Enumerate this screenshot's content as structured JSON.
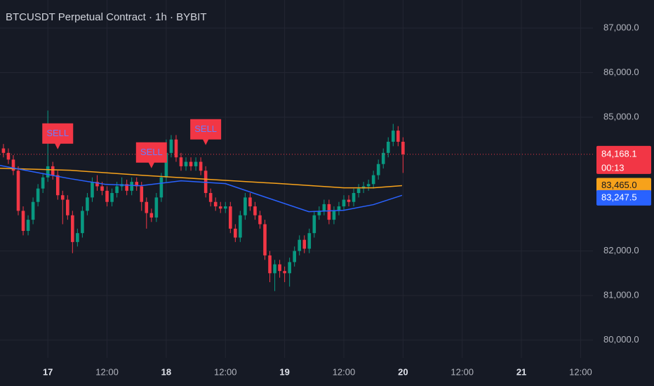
{
  "chart_data": {
    "type": "candlestick",
    "title": "BTCUSDT Perpetual Contract · 1h · BYBIT",
    "x": [
      -9,
      -8,
      -7,
      -6,
      -5,
      -4,
      -3,
      -2,
      -1,
      0,
      1,
      2,
      3,
      4,
      5,
      6,
      7,
      8,
      9,
      10,
      11,
      12,
      13,
      14,
      15,
      16,
      17,
      18,
      19,
      20,
      21,
      22,
      23,
      24,
      25,
      26,
      27,
      28,
      29,
      30,
      31,
      32,
      33,
      34,
      35,
      36,
      37,
      38,
      39,
      40,
      41,
      42,
      43,
      44,
      45,
      46,
      47,
      48,
      49,
      50,
      51,
      52,
      53,
      54,
      55,
      56,
      57,
      58,
      59,
      60,
      61,
      62,
      63,
      64,
      65,
      66,
      67,
      68,
      69,
      70,
      71,
      72
    ],
    "open": [
      84300,
      84200,
      84050,
      83800,
      82900,
      82450,
      82700,
      83100,
      83400,
      83650,
      83900,
      83700,
      83250,
      83150,
      82800,
      82200,
      82400,
      82900,
      83200,
      83550,
      83450,
      83350,
      83100,
      83300,
      83450,
      83500,
      83350,
      83550,
      83450,
      83100,
      82850,
      82750,
      83200,
      83650,
      84200,
      84500,
      84100,
      83900,
      84000,
      83900,
      84000,
      83800,
      83300,
      83100,
      83000,
      82950,
      83000,
      82500,
      82300,
      82800,
      83200,
      83000,
      82800,
      82600,
      81900,
      81500,
      81700,
      81550,
      81500,
      81750,
      82000,
      82250,
      82050,
      82400,
      82800,
      82900,
      83050,
      82700,
      82900,
      83000,
      83150,
      83100,
      83300,
      83400,
      83450,
      83500,
      83700,
      83950,
      84200,
      84450,
      84700,
      84450
    ],
    "high": [
      84400,
      84300,
      84150,
      83900,
      83000,
      82800,
      83200,
      83500,
      83750,
      85150,
      84000,
      83800,
      83350,
      83250,
      82900,
      82500,
      83000,
      83300,
      83650,
      83700,
      83550,
      83450,
      83400,
      83550,
      83650,
      83600,
      83650,
      83650,
      83550,
      83200,
      82950,
      83300,
      83750,
      84500,
      84600,
      84600,
      84200,
      84100,
      84100,
      84100,
      84100,
      83900,
      83400,
      83200,
      83100,
      83100,
      83100,
      82600,
      82900,
      83300,
      83300,
      83100,
      82900,
      82700,
      82000,
      81800,
      81800,
      81650,
      81850,
      82100,
      82350,
      82350,
      82500,
      82900,
      83000,
      83150,
      83150,
      83000,
      83100,
      83250,
      83250,
      83400,
      83500,
      83550,
      83600,
      83800,
      84050,
      84300,
      84550,
      84850,
      84800,
      84550
    ],
    "low": [
      84100,
      83950,
      83700,
      82800,
      82350,
      82350,
      82600,
      83000,
      83300,
      83550,
      83600,
      83150,
      82600,
      82700,
      81950,
      82100,
      82300,
      82800,
      83100,
      83350,
      83250,
      83000,
      83000,
      83200,
      83350,
      83250,
      83250,
      83350,
      82900,
      82500,
      82650,
      82650,
      83100,
      83550,
      84100,
      84000,
      83800,
      83800,
      83800,
      83800,
      83700,
      83200,
      83000,
      82900,
      82850,
      82850,
      82400,
      82200,
      82200,
      82700,
      82900,
      82700,
      82500,
      81800,
      81300,
      81100,
      81400,
      81300,
      81200,
      81650,
      81900,
      81950,
      81950,
      82300,
      82700,
      82800,
      82600,
      82600,
      82800,
      82900,
      83000,
      83000,
      83200,
      83300,
      83350,
      83400,
      83600,
      83850,
      84100,
      84350,
      84350,
      83750
    ],
    "close": [
      84200,
      84050,
      83800,
      82900,
      82450,
      82700,
      83100,
      83400,
      83650,
      83900,
      83700,
      83250,
      83150,
      82800,
      82200,
      82400,
      82900,
      83200,
      83550,
      83450,
      83350,
      83100,
      83300,
      83450,
      83500,
      83350,
      83550,
      83450,
      83100,
      82850,
      82750,
      83200,
      83650,
      84200,
      84500,
      84100,
      83900,
      84000,
      83900,
      84000,
      83800,
      83300,
      83100,
      83000,
      82950,
      83000,
      82500,
      82300,
      82800,
      83200,
      83000,
      82800,
      82600,
      81900,
      81500,
      81700,
      81550,
      81500,
      81750,
      82000,
      82250,
      82050,
      82400,
      82800,
      82900,
      83050,
      82700,
      82900,
      83000,
      83150,
      83100,
      83300,
      83400,
      83450,
      83500,
      83700,
      83950,
      84200,
      84450,
      84700,
      84450,
      84168.1
    ],
    "up_color": "#089981",
    "down_color": "#f23645",
    "lines": [
      {
        "color": "#f7a21b",
        "x": [
          -9.7,
          4.6,
          18.8,
          33,
          47.2,
          60,
          66,
          71.8
        ],
        "values": [
          83856,
          83809,
          83699,
          83604,
          83510,
          83416,
          83416,
          83465
        ],
        "last_label": "83,465.0"
      },
      {
        "color": "#2962ff",
        "x": [
          -9.7,
          -3,
          4.6,
          11.7,
          18.8,
          27,
          36,
          44.4,
          52.9,
          60,
          66,
          71.8
        ],
        "values": [
          83919,
          83777,
          83620,
          83494,
          83463,
          83573,
          83510,
          83196,
          82881,
          82913,
          83039,
          83247.5
        ],
        "last_label": "83,247.5"
      }
    ],
    "last_price": {
      "value": 84168.1,
      "label": "84,168.1",
      "countdown": "00:13"
    },
    "annotations": [
      {
        "text": "SELL",
        "x": 2,
        "y": 84280
      },
      {
        "text": "SELL",
        "x": 21,
        "y": 83855
      },
      {
        "text": "SELL",
        "x": 32,
        "y": 84375
      }
    ],
    "xlim": [
      -9.7,
      110.5
    ],
    "xticks": [
      {
        "value": 0,
        "label": "17"
      },
      {
        "value": 12,
        "label": "12:00"
      },
      {
        "value": 24,
        "label": "18"
      },
      {
        "value": 36,
        "label": "12:00"
      },
      {
        "value": 48,
        "label": "19"
      },
      {
        "value": 60,
        "label": "12:00"
      },
      {
        "value": 72,
        "label": "20"
      },
      {
        "value": 84,
        "label": "12:00"
      },
      {
        "value": 96,
        "label": "21"
      },
      {
        "value": 108,
        "label": "12:00"
      }
    ],
    "ylim": [
      79600,
      87630
    ],
    "yticks": [
      {
        "value": 80000,
        "label": "80,000.0"
      },
      {
        "value": 81000,
        "label": "81,000.0"
      },
      {
        "value": 82000,
        "label": "82,000.0"
      },
      {
        "value": 85000,
        "label": "85,000.0"
      },
      {
        "value": 86000,
        "label": "86,000.0"
      },
      {
        "value": 87000,
        "label": "87,000.0"
      }
    ],
    "grid": true
  }
}
